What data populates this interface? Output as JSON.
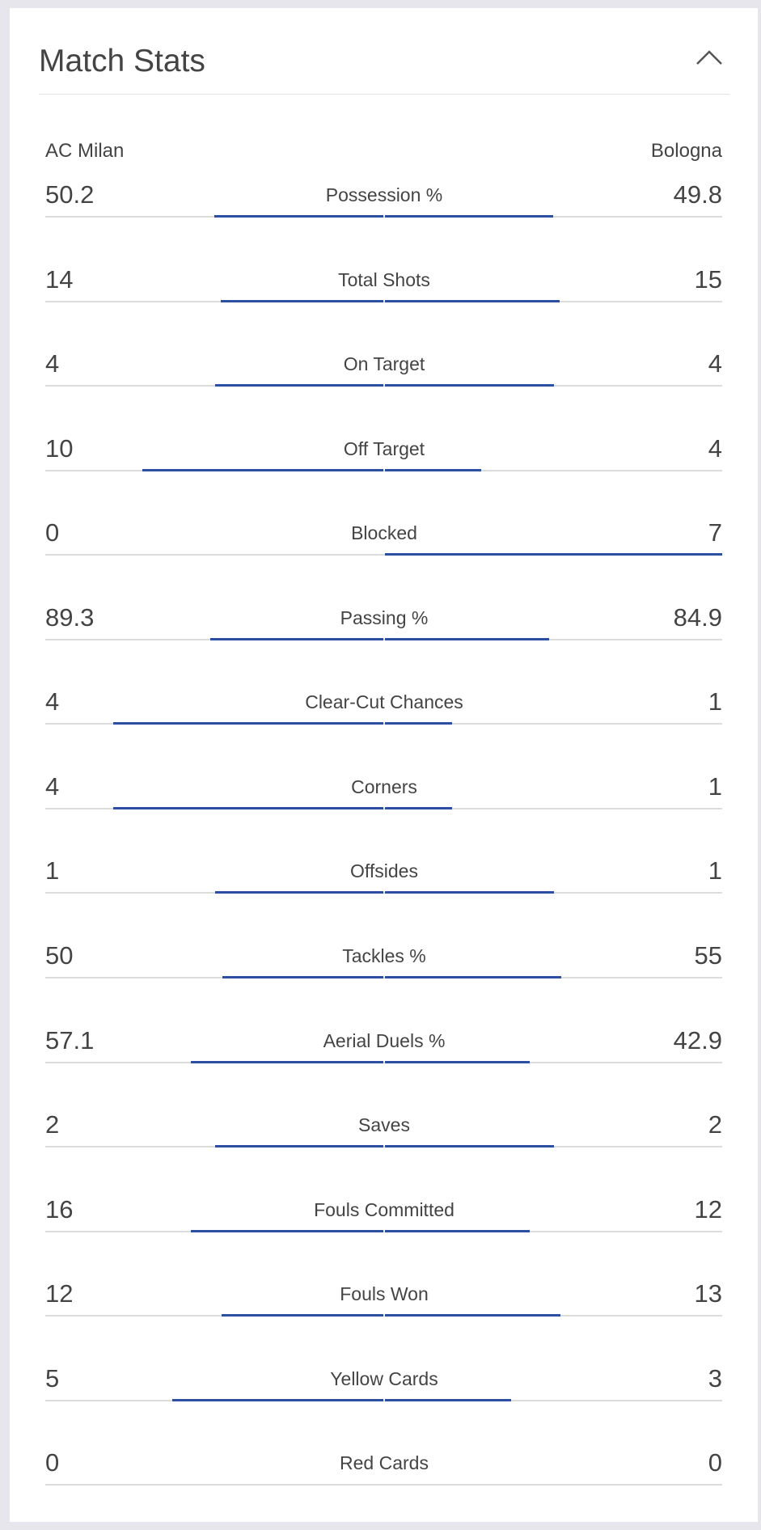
{
  "header": {
    "title": "Match Stats"
  },
  "teams": {
    "home": "AC Milan",
    "away": "Bologna"
  },
  "stats": [
    {
      "label": "Possession %",
      "home": 50.2,
      "away": 49.8
    },
    {
      "label": "Total Shots",
      "home": 14,
      "away": 15
    },
    {
      "label": "On Target",
      "home": 4,
      "away": 4
    },
    {
      "label": "Off Target",
      "home": 10,
      "away": 4
    },
    {
      "label": "Blocked",
      "home": 0,
      "away": 7
    },
    {
      "label": "Passing %",
      "home": 89.3,
      "away": 84.9
    },
    {
      "label": "Clear-Cut Chances",
      "home": 4,
      "away": 1
    },
    {
      "label": "Corners",
      "home": 4,
      "away": 1
    },
    {
      "label": "Offsides",
      "home": 1,
      "away": 1
    },
    {
      "label": "Tackles %",
      "home": 50,
      "away": 55
    },
    {
      "label": "Aerial Duels %",
      "home": 57.1,
      "away": 42.9
    },
    {
      "label": "Saves",
      "home": 2,
      "away": 2
    },
    {
      "label": "Fouls Committed",
      "home": 16,
      "away": 12
    },
    {
      "label": "Fouls Won",
      "home": 12,
      "away": 13
    },
    {
      "label": "Yellow Cards",
      "home": 5,
      "away": 3
    },
    {
      "label": "Red Cards",
      "home": 0,
      "away": 0
    }
  ]
}
